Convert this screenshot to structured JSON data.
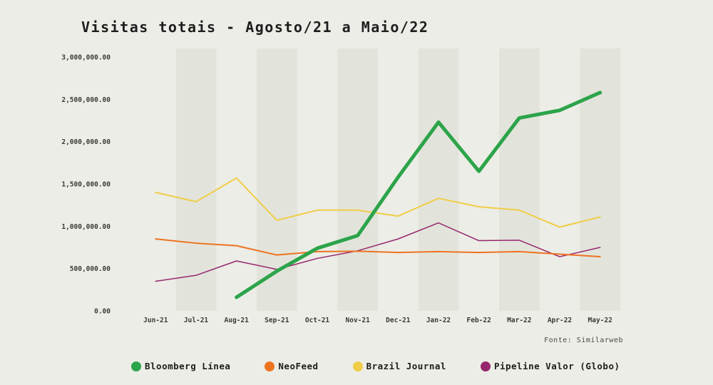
{
  "page": {
    "background_color": "#ecede6",
    "stripe_color": "#e2e4db"
  },
  "chart_data": {
    "type": "line",
    "title": "Visitas totais - Agosto/21 a Maio/22",
    "source": "Fonte: Similarweb",
    "xlabel": "",
    "ylabel": "",
    "grid": false,
    "legend_position": "bottom",
    "ylim": [
      0,
      3000000
    ],
    "y_ticks": [
      "3,000,000.00",
      "2,500,000.00",
      "2,000,000.00",
      "1,500,000.00",
      "1,000,000.00",
      "500,000.00",
      "0.00"
    ],
    "x": [
      "Jun-21",
      "Jul-21",
      "Aug-21",
      "Sep-21",
      "Oct-21",
      "Nov-21",
      "Dec-21",
      "Jan-22",
      "Feb-22",
      "Mar-22",
      "Apr-22",
      "May-22"
    ],
    "series": [
      {
        "name": "Bloomberg Línea",
        "color": "#2ca44a",
        "line_width": 5,
        "values": [
          null,
          null,
          160000,
          470000,
          740000,
          890000,
          1580000,
          2230000,
          1650000,
          2280000,
          2370000,
          2580000
        ]
      },
      {
        "name": "NeoFeed",
        "color": "#ee7320",
        "line_width": 2,
        "values": [
          850000,
          800000,
          770000,
          660000,
          700000,
          705000,
          690000,
          700000,
          690000,
          700000,
          670000,
          640000
        ]
      },
      {
        "name": "Brazil Journal",
        "color": "#f0cd48",
        "line_width": 2,
        "values": [
          1400000,
          1290000,
          1570000,
          1070000,
          1190000,
          1190000,
          1120000,
          1330000,
          1230000,
          1190000,
          990000,
          1110000
        ]
      },
      {
        "name": "Pipeline Valor (Globo)",
        "color": "#96276d",
        "line_width": 1.5,
        "values": [
          350000,
          420000,
          590000,
          490000,
          620000,
          710000,
          850000,
          1040000,
          830000,
          835000,
          640000,
          750000
        ]
      }
    ]
  }
}
